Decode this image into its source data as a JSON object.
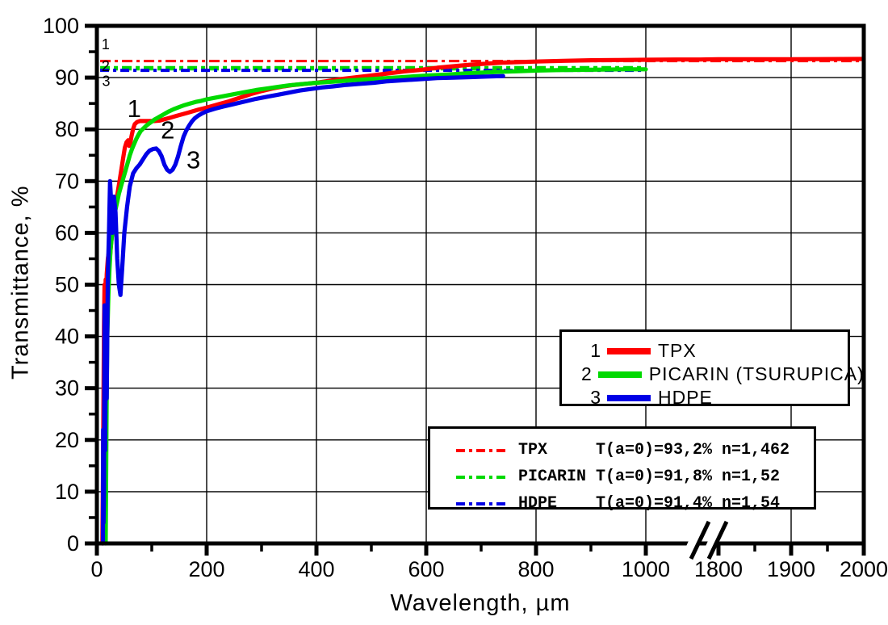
{
  "chart_data": {
    "type": "line",
    "title": "",
    "xlabel": "Wavelength, µm",
    "ylabel": "Transmittance, %",
    "ylim": [
      0,
      100
    ],
    "grid": true,
    "x_axis": {
      "break_between": [
        1000,
        1800
      ],
      "major_ticks": [
        0,
        200,
        400,
        600,
        800,
        1000,
        1800,
        1900,
        2000
      ],
      "minor_ticks": [
        100,
        300,
        500,
        700,
        900,
        1850,
        1950
      ],
      "gridlines": [
        200,
        400,
        600,
        800,
        1000,
        1900
      ]
    },
    "y_axis": {
      "major_ticks": [
        0,
        10,
        20,
        30,
        40,
        50,
        60,
        70,
        80,
        90,
        100
      ],
      "minor_ticks": [
        5,
        15,
        25,
        35,
        45,
        55,
        65,
        75,
        85,
        95
      ],
      "gridlines": [
        10,
        20,
        30,
        40,
        50,
        60,
        70,
        80,
        90
      ]
    },
    "series": [
      {
        "name": "TPX",
        "index_label": "1",
        "color": "#ff0000",
        "points": [
          [
            10,
            0
          ],
          [
            11,
            12
          ],
          [
            12,
            28
          ],
          [
            13,
            42
          ],
          [
            14,
            50
          ],
          [
            15,
            46
          ],
          [
            16,
            51
          ],
          [
            17,
            48
          ],
          [
            18,
            52
          ],
          [
            20,
            55
          ],
          [
            22,
            56.5
          ],
          [
            24,
            55.5
          ],
          [
            26,
            58
          ],
          [
            28,
            60
          ],
          [
            30,
            62
          ],
          [
            33,
            64.5
          ],
          [
            36,
            66.5
          ],
          [
            39,
            68.5
          ],
          [
            42,
            70.5
          ],
          [
            45,
            72.5
          ],
          [
            48,
            74.5
          ],
          [
            51,
            76.5
          ],
          [
            54,
            77.5
          ],
          [
            57,
            77.9
          ],
          [
            59,
            76.8
          ],
          [
            61,
            77.4
          ],
          [
            63,
            78.6
          ],
          [
            66,
            80.1
          ],
          [
            69,
            81
          ],
          [
            73,
            81.4
          ],
          [
            78,
            81.6
          ],
          [
            90,
            81.6
          ],
          [
            105,
            81.6
          ],
          [
            115,
            81.7
          ],
          [
            125,
            82
          ],
          [
            135,
            82.3
          ],
          [
            145,
            82.6
          ],
          [
            155,
            82.9
          ],
          [
            165,
            83.2
          ],
          [
            175,
            83.5
          ],
          [
            185,
            83.8
          ],
          [
            200,
            84.2
          ],
          [
            220,
            84.8
          ],
          [
            240,
            85.4
          ],
          [
            260,
            86.1
          ],
          [
            280,
            86.8
          ],
          [
            300,
            87.4
          ],
          [
            320,
            87.9
          ],
          [
            340,
            88.3
          ],
          [
            360,
            88.6
          ],
          [
            380,
            88.8
          ],
          [
            400,
            89
          ],
          [
            425,
            89.4
          ],
          [
            450,
            89.8
          ],
          [
            475,
            90.1
          ],
          [
            500,
            90.4
          ],
          [
            530,
            90.8
          ],
          [
            560,
            91.2
          ],
          [
            590,
            91.5
          ],
          [
            620,
            91.9
          ],
          [
            650,
            92.2
          ],
          [
            680,
            92.5
          ],
          [
            710,
            92.7
          ],
          [
            740,
            92.9
          ],
          [
            770,
            93
          ],
          [
            800,
            93.1
          ],
          [
            850,
            93.25
          ],
          [
            900,
            93.35
          ],
          [
            950,
            93.4
          ],
          [
            1000,
            93.45
          ],
          [
            1100,
            93.5
          ],
          [
            1300,
            93.5
          ],
          [
            1500,
            93.5
          ],
          [
            1800,
            93.55
          ],
          [
            1900,
            93.55
          ],
          [
            2000,
            93.6
          ]
        ]
      },
      {
        "name": "PICARIN (TSURUPICA)",
        "index_label": "2",
        "color": "#00d900",
        "points": [
          [
            16,
            0
          ],
          [
            17,
            16
          ],
          [
            18,
            30
          ],
          [
            19,
            40
          ],
          [
            21,
            48
          ],
          [
            23,
            53
          ],
          [
            25,
            57
          ],
          [
            28,
            60
          ],
          [
            31,
            62.5
          ],
          [
            34,
            64.5
          ],
          [
            37,
            66
          ],
          [
            40,
            67.5
          ],
          [
            44,
            69
          ],
          [
            48,
            70.5
          ],
          [
            52,
            72
          ],
          [
            56,
            73.5
          ],
          [
            60,
            75
          ],
          [
            64,
            76.2
          ],
          [
            68,
            77.2
          ],
          [
            72,
            78.2
          ],
          [
            76,
            79
          ],
          [
            80,
            79.7
          ],
          [
            85,
            80.2
          ],
          [
            90,
            80.7
          ],
          [
            95,
            81.1
          ],
          [
            100,
            81.5
          ],
          [
            105,
            81.9
          ],
          [
            110,
            82.2
          ],
          [
            115,
            82.5
          ],
          [
            120,
            82.8
          ],
          [
            130,
            83.4
          ],
          [
            140,
            83.9
          ],
          [
            150,
            84.3
          ],
          [
            160,
            84.7
          ],
          [
            170,
            85
          ],
          [
            180,
            85.3
          ],
          [
            190,
            85.5
          ],
          [
            200,
            85.8
          ],
          [
            215,
            86.1
          ],
          [
            230,
            86.4
          ],
          [
            250,
            86.8
          ],
          [
            270,
            87.2
          ],
          [
            290,
            87.6
          ],
          [
            310,
            87.9
          ],
          [
            330,
            88.2
          ],
          [
            350,
            88.5
          ],
          [
            370,
            88.7
          ],
          [
            400,
            89
          ],
          [
            430,
            89.2
          ],
          [
            460,
            89.45
          ],
          [
            490,
            89.65
          ],
          [
            520,
            89.85
          ],
          [
            550,
            90.05
          ],
          [
            580,
            90.25
          ],
          [
            610,
            90.45
          ],
          [
            640,
            90.6
          ],
          [
            670,
            90.8
          ],
          [
            700,
            90.95
          ],
          [
            730,
            91.1
          ],
          [
            760,
            91.2
          ],
          [
            800,
            91.35
          ],
          [
            840,
            91.45
          ],
          [
            880,
            91.5
          ],
          [
            920,
            91.55
          ],
          [
            960,
            91.6
          ],
          [
            1000,
            91.6
          ]
        ]
      },
      {
        "name": "HDPE",
        "index_label": "3",
        "color": "#0000e6",
        "points": [
          [
            11,
            0
          ],
          [
            11.5,
            22
          ],
          [
            12,
            4
          ],
          [
            13,
            10
          ],
          [
            14,
            46
          ],
          [
            15,
            18
          ],
          [
            16,
            35
          ],
          [
            18,
            28
          ],
          [
            20,
            52
          ],
          [
            22,
            60
          ],
          [
            24,
            70
          ],
          [
            26,
            66
          ],
          [
            28,
            60
          ],
          [
            31,
            67
          ],
          [
            34,
            64
          ],
          [
            37,
            55
          ],
          [
            40,
            50
          ],
          [
            43,
            48
          ],
          [
            46,
            53
          ],
          [
            50,
            60
          ],
          [
            55,
            65
          ],
          [
            60,
            69
          ],
          [
            66,
            71.5
          ],
          [
            72,
            72.5
          ],
          [
            78,
            73.2
          ],
          [
            84,
            74.2
          ],
          [
            90,
            75.2
          ],
          [
            96,
            75.9
          ],
          [
            102,
            76.2
          ],
          [
            108,
            76.3
          ],
          [
            113,
            75.8
          ],
          [
            118,
            74.8
          ],
          [
            123,
            73.2
          ],
          [
            128,
            72.2
          ],
          [
            133,
            71.8
          ],
          [
            138,
            72.2
          ],
          [
            143,
            73.2
          ],
          [
            148,
            74.8
          ],
          [
            153,
            76.8
          ],
          [
            158,
            78.6
          ],
          [
            163,
            79.8
          ],
          [
            168,
            80.7
          ],
          [
            173,
            81.5
          ],
          [
            178,
            82.1
          ],
          [
            184,
            82.6
          ],
          [
            192,
            83.1
          ],
          [
            200,
            83.5
          ],
          [
            215,
            84
          ],
          [
            230,
            84.4
          ],
          [
            250,
            84.9
          ],
          [
            270,
            85.4
          ],
          [
            290,
            85.9
          ],
          [
            310,
            86.3
          ],
          [
            330,
            86.7
          ],
          [
            350,
            87.1
          ],
          [
            370,
            87.5
          ],
          [
            390,
            87.8
          ],
          [
            410,
            88.1
          ],
          [
            430,
            88.3
          ],
          [
            455,
            88.6
          ],
          [
            480,
            88.8
          ],
          [
            505,
            89
          ],
          [
            530,
            89.3
          ],
          [
            560,
            89.5
          ],
          [
            590,
            89.7
          ],
          [
            620,
            89.9
          ],
          [
            650,
            90
          ],
          [
            680,
            90.1
          ],
          [
            710,
            90.2
          ],
          [
            740,
            90.3
          ]
        ]
      }
    ],
    "reference_lines": [
      {
        "name": "TPX",
        "value": 93.2,
        "color": "#ff0000",
        "label": "1",
        "x_start": 6,
        "x_end": 1995,
        "thickness": 3,
        "dash": "13 5 4 5"
      },
      {
        "name": "PICARIN",
        "value": 91.8,
        "color": "#00d900",
        "label": "2",
        "x_start": 6,
        "x_end": 994,
        "thickness": 5.5,
        "dash": "12 5 5 5"
      },
      {
        "name": "HDPE",
        "value": 91.4,
        "color": "#0000e6",
        "label": "3",
        "x_start": 6,
        "x_end": 994,
        "thickness": 4,
        "dash": "11 5 4 5"
      }
    ],
    "curve_labels": [
      {
        "text": "1",
        "x_um": 68,
        "y_pct": 83.9
      },
      {
        "text": "2",
        "x_um": 129,
        "y_pct": 79.8
      },
      {
        "text": "3",
        "x_um": 176,
        "y_pct": 74.0
      }
    ],
    "ref_labels": [
      {
        "text": "1",
        "x_um": 16,
        "y_pct": 96.4
      },
      {
        "text": "2",
        "x_um": 16,
        "y_pct": 92.2
      },
      {
        "text": "3",
        "x_um": 17,
        "y_pct": 89.3
      }
    ],
    "legend_position": "right-middle"
  },
  "legend_main": {
    "rows": [
      {
        "num": "1",
        "label": "TPX",
        "color": "#ff0000"
      },
      {
        "num": "2",
        "label": "PICARIN (TSURUPICA)",
        "color": "#00d900"
      },
      {
        "num": "3",
        "label": "HDPE",
        "color": "#0000e6"
      }
    ]
  },
  "legend_fit": {
    "rows": [
      {
        "color": "#ff0000",
        "text": "TPX     T(a=0)=93,2% n=1,462"
      },
      {
        "color": "#00d900",
        "text": "PICARIN T(a=0)=91,8% n=1,52"
      },
      {
        "color": "#0000e6",
        "text": "HDPE    T(a=0)=91,4% n=1,54"
      }
    ]
  }
}
